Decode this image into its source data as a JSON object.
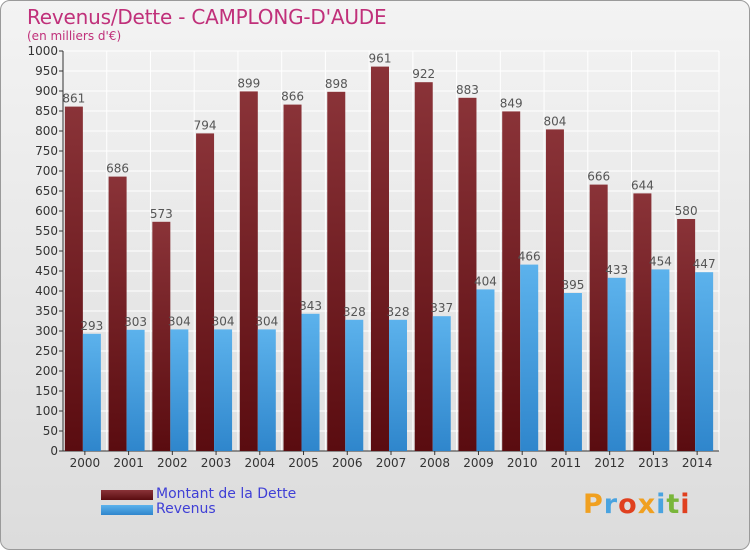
{
  "header": {
    "title": "Revenus/Dette - CAMPLONG-D'AUDE",
    "unit": "(en milliers d'€)"
  },
  "legend": {
    "debt_label": "Montant de la Dette",
    "revenue_label": "Revenus"
  },
  "logo": {
    "text": "Proxiti",
    "letters": [
      "P",
      "r",
      "o",
      "x",
      "i",
      "t",
      "i"
    ],
    "colors": [
      "#f0a020",
      "#49a3e0",
      "#e0401f",
      "#f0a020",
      "#49a3e0",
      "#79b63a",
      "#e0401f"
    ]
  },
  "colors": {
    "debt_top": "#8a3338",
    "debt_bottom": "#5a0c10",
    "revenue_top": "#5cb2ec",
    "revenue_bottom": "#2f86cc",
    "title": "#c0307a",
    "legend_text": "#3f3fd6"
  },
  "chart_data": {
    "type": "bar",
    "categories": [
      "2000",
      "2001",
      "2002",
      "2003",
      "2004",
      "2005",
      "2006",
      "2007",
      "2008",
      "2009",
      "2010",
      "2011",
      "2012",
      "2013",
      "2014"
    ],
    "series": [
      {
        "name": "Montant de la Dette",
        "values": [
          861,
          686,
          573,
          794,
          899,
          866,
          898,
          961,
          922,
          883,
          849,
          804,
          666,
          644,
          580
        ]
      },
      {
        "name": "Revenus",
        "values": [
          293,
          303,
          304,
          304,
          304,
          343,
          328,
          328,
          337,
          404,
          466,
          395,
          433,
          454,
          447
        ]
      }
    ],
    "ylim": [
      0,
      1000
    ],
    "yticks": [
      0,
      50,
      100,
      150,
      200,
      250,
      300,
      350,
      400,
      450,
      500,
      550,
      600,
      650,
      700,
      750,
      800,
      850,
      900,
      950,
      1000
    ],
    "grid": true,
    "legend_position": "bottom-left"
  }
}
